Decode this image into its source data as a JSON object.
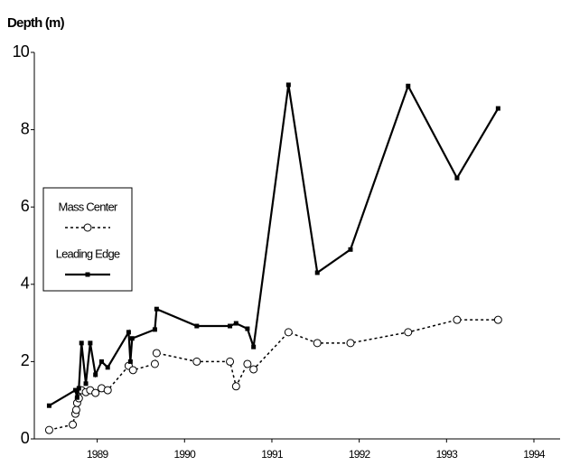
{
  "chart_data": {
    "type": "line",
    "ylabel": "Depth (m)",
    "xlim": [
      1988.28,
      1994.3
    ],
    "xticks": [
      1989,
      1990,
      1991,
      1992,
      1993,
      1994
    ],
    "ylim": [
      0,
      10
    ],
    "yticks": [
      0,
      2,
      4,
      6,
      8,
      10
    ],
    "grid": false,
    "legend": "left",
    "series": [
      {
        "name": "Mass Center",
        "color": "#000000",
        "style": "dashed",
        "marker": "circle",
        "x": [
          1988.45,
          1988.72,
          1988.75,
          1988.76,
          1988.77,
          1988.79,
          1988.82,
          1988.87,
          1988.92,
          1988.98,
          1989.05,
          1989.12,
          1989.36,
          1989.41,
          1989.66,
          1989.68,
          1990.14,
          1990.52,
          1990.59,
          1990.72,
          1990.79,
          1991.19,
          1991.52,
          1991.9,
          1992.56,
          1993.12,
          1993.59
        ],
        "values": [
          0.23,
          0.37,
          0.65,
          0.75,
          0.93,
          1.05,
          1.26,
          1.21,
          1.26,
          1.19,
          1.31,
          1.26,
          1.89,
          1.78,
          1.94,
          2.22,
          2.0,
          2.0,
          1.36,
          1.94,
          1.8,
          2.76,
          2.48,
          2.48,
          2.76,
          3.08,
          3.08
        ]
      },
      {
        "name": "Leading Edge",
        "color": "#000000",
        "style": "solid",
        "marker": "square",
        "x": [
          1988.45,
          1988.75,
          1988.77,
          1988.79,
          1988.82,
          1988.87,
          1988.92,
          1988.98,
          1989.05,
          1989.12,
          1989.36,
          1989.38,
          1989.4,
          1989.66,
          1989.68,
          1990.14,
          1990.52,
          1990.59,
          1990.72,
          1990.79,
          1991.19,
          1991.52,
          1991.9,
          1992.56,
          1993.12,
          1993.59
        ],
        "values": [
          0.86,
          1.26,
          1.07,
          1.31,
          2.48,
          1.43,
          2.48,
          1.66,
          2.0,
          1.85,
          2.76,
          2.0,
          2.6,
          2.83,
          3.36,
          2.92,
          2.92,
          2.99,
          2.85,
          2.38,
          9.16,
          4.3,
          4.9,
          9.13,
          6.75,
          8.55
        ]
      }
    ]
  }
}
